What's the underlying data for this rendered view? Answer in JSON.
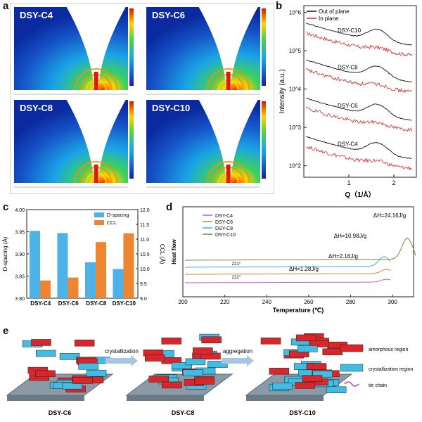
{
  "panels": {
    "a": "a",
    "b": "b",
    "c": "c",
    "d": "d",
    "e": "e"
  },
  "gisaxs": {
    "tiles": [
      {
        "label": "DSY-C4"
      },
      {
        "label": "DSY-C6"
      },
      {
        "label": "DSY-C8"
      },
      {
        "label": "DSY-C10"
      }
    ]
  },
  "chart_data": [
    {
      "id": "b",
      "type": "line",
      "xlabel": "Q（1/Å）",
      "ylabel": "Intensity (a.u.)",
      "yscale": "log",
      "xlim": [
        0,
        2.5
      ],
      "ylim": [
        50,
        1500000
      ],
      "x_ticks": [
        1,
        2
      ],
      "y_ticks": [
        {
          "v": 100,
          "label": "10^2"
        },
        {
          "v": 1000,
          "label": "10^3"
        },
        {
          "v": 10000,
          "label": "10^4"
        },
        {
          "v": 100000,
          "label": "10^5"
        },
        {
          "v": 1000000,
          "label": "10^6"
        }
      ],
      "legend": [
        "Out of plane",
        "In plane"
      ],
      "legend_colors": [
        "#111111",
        "#d42a2a"
      ],
      "series_labels": [
        {
          "name": "DSY-C10",
          "base": 200000
        },
        {
          "name": "DSY-C8",
          "base": 22000
        },
        {
          "name": "DSY-C6",
          "base": 2200
        },
        {
          "name": "DSY-C4",
          "base": 220
        }
      ]
    },
    {
      "id": "c",
      "type": "bar",
      "categories": [
        "DSY-C4",
        "DSY-C6",
        "DSY-C8",
        "DSY-C10"
      ],
      "series": [
        {
          "name": "D-spacing",
          "axis": "left",
          "color": "#4db3e6",
          "values": [
            3.952,
            3.947,
            3.881,
            3.866
          ]
        },
        {
          "name": "CCL",
          "axis": "right",
          "color": "#ee8533",
          "values": [
            9.6,
            9.7,
            10.9,
            11.2
          ]
        }
      ],
      "ylabel": "D-spacing (Å)",
      "y2label": "CCL (Å)",
      "ylim": [
        3.8,
        4.0
      ],
      "y2lim": [
        9.0,
        12.0
      ],
      "y_ticks": [
        "3.80",
        "3.85",
        "3.90",
        "3.95",
        "4.00"
      ],
      "y2_ticks": [
        "9.0",
        "9.5",
        "10.0",
        "10.5",
        "11.0",
        "11.5",
        "12.0"
      ]
    },
    {
      "id": "d",
      "type": "line",
      "xlabel": "Temperature (℃)",
      "ylabel": "Heat flow",
      "xlim": [
        200,
        310
      ],
      "x_ticks": [
        200,
        220,
        240,
        260,
        280,
        300
      ],
      "legend": [
        "DSY-C4",
        "DSY-C6",
        "DSY-C8",
        "DSY-C10"
      ],
      "legend_colors": [
        "#c25ac8",
        "#c58a35",
        "#3fb6c8",
        "#7a8a2e"
      ],
      "annotations": [
        "ΔH=24.16J/g",
        "ΔH=10.98J/g",
        "ΔH=2.16J/g",
        "ΔH=1.28J/g",
        "221°",
        "222°"
      ]
    }
  ],
  "schematic": {
    "arrows": [
      "crystallization",
      "aggregation"
    ],
    "captions": [
      "DSY-C6",
      "DSY-C8",
      "DSY-C10"
    ],
    "legend": [
      "amorphous region",
      "crystallization region",
      "tie chain"
    ]
  }
}
